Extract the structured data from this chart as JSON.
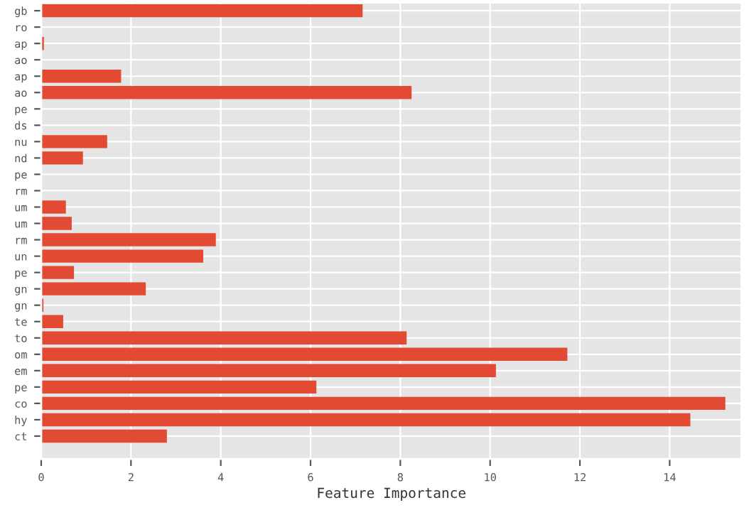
{
  "chart_data": {
    "type": "bar",
    "orientation": "horizontal",
    "xlabel": "Feature Importance",
    "categories": [
      "gb",
      "ro",
      "ap",
      "ao",
      "ap",
      "ao",
      "pe",
      "ds",
      "nu",
      "nd",
      "pe",
      "rm",
      "um",
      "um",
      "rm",
      "un",
      "pe",
      "gn",
      "gn",
      "te",
      "to",
      "om",
      "em",
      "pe",
      "co",
      "hy",
      "ct"
    ],
    "values": [
      7.16,
      0,
      0.06,
      0,
      1.78,
      8.25,
      0,
      0,
      1.47,
      0.93,
      0,
      0,
      0.55,
      0.68,
      3.89,
      3.61,
      0.73,
      2.33,
      0.05,
      0.49,
      8.14,
      11.72,
      10.13,
      6.13,
      15.24,
      14.46,
      2.8
    ],
    "color": "#e24a33",
    "xlim": [
      0,
      15.6
    ],
    "xticks": [
      0,
      2,
      4,
      6,
      8,
      10,
      12,
      14
    ],
    "grid": true,
    "legend": false
  }
}
